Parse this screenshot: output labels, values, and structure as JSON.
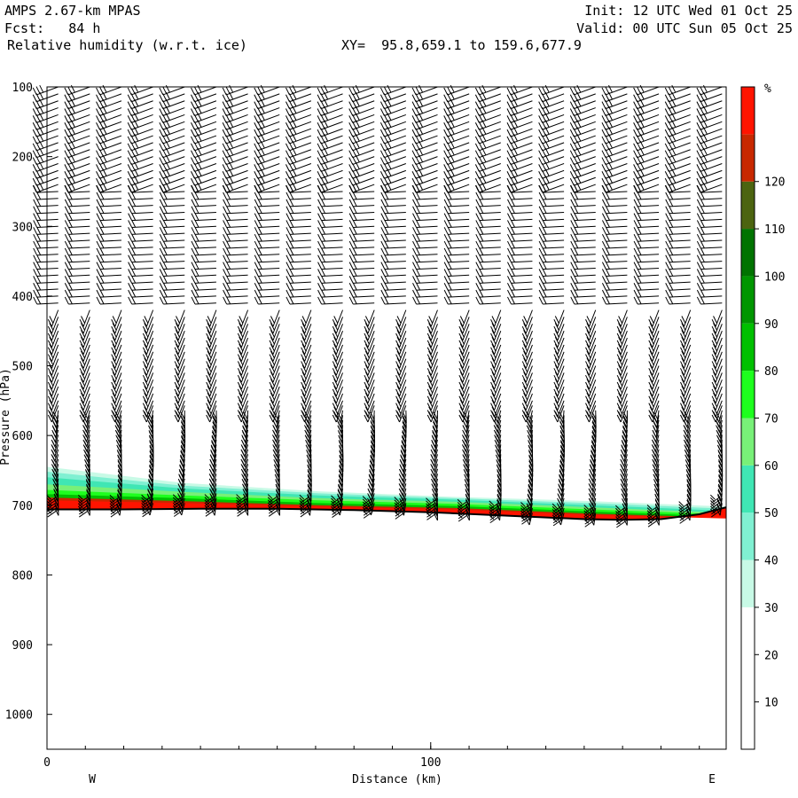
{
  "header": {
    "model": "AMPS 2.67-km MPAS",
    "init": "Init: 12 UTC Wed 01 Oct 25",
    "forecast": "Fcst:   84 h",
    "valid": "Valid: 00 UTC Sun 05 Oct 25",
    "field": "Relative humidity (w.r.t. ice)",
    "xy": "XY=  95.8,659.1 to 159.6,677.9"
  },
  "chart_data": {
    "type": "cross-section",
    "title": "Relative humidity (w.r.t. ice)",
    "xlabel": "Distance (km)",
    "ylabel": "Pressure (hPa)",
    "xlim": [
      0,
      177
    ],
    "ylim": [
      1050,
      100
    ],
    "x_ticks": [
      "0",
      "100"
    ],
    "y_ticks": [
      "100",
      "200",
      "300",
      "400",
      "500",
      "600",
      "700",
      "800",
      "900",
      "1000"
    ],
    "x_end_labels": {
      "left": "W",
      "right": "E"
    },
    "colorbar": {
      "unit": "%",
      "levels": [
        10,
        20,
        30,
        40,
        50,
        60,
        70,
        80,
        90,
        100,
        110,
        120
      ],
      "colors": [
        "#ffffff",
        "#ffffff",
        "#ffffff",
        "#c8fae6",
        "#80f0d2",
        "#40e6b4",
        "#78f078",
        "#1eff1e",
        "#00c000",
        "#009600",
        "#007300",
        "#4c6410",
        "#c82800",
        "#ff1400"
      ]
    },
    "terrain_pressure": {
      "x": [
        0,
        20,
        40,
        60,
        80,
        100,
        120,
        140,
        150,
        160,
        170,
        177
      ],
      "p": [
        706,
        706,
        705,
        705,
        707,
        710,
        715,
        720,
        721,
        720,
        713,
        703
      ]
    },
    "rh_layers": [
      {
        "color": "#c8fae6",
        "top": [
          645,
          668,
          680,
          688,
          694,
          702
        ]
      },
      {
        "color": "#80f0d2",
        "top": [
          652,
          672,
          683,
          690,
          697,
          705
        ]
      },
      {
        "color": "#40e6b4",
        "top": [
          660,
          676,
          686,
          692,
          700,
          708
        ]
      },
      {
        "color": "#78f078",
        "top": [
          670,
          681,
          690,
          695,
          703,
          711
        ]
      },
      {
        "color": "#1eff1e",
        "top": [
          678,
          686,
          693,
          698,
          706,
          713
        ]
      },
      {
        "color": "#00c000",
        "top": [
          684,
          690,
          697,
          701,
          709,
          716
        ]
      },
      {
        "color": "#c82800",
        "top": [
          689,
          694,
          700,
          704,
          712,
          718
        ]
      },
      {
        "color": "#ff1400",
        "top": [
          693,
          697,
          702,
          706,
          714,
          719
        ]
      }
    ],
    "wind_barbs": "westerly shear; strong near 100-300 hPa, weak mid-levels, calm-ish boundary layer with many barbs near surface"
  }
}
